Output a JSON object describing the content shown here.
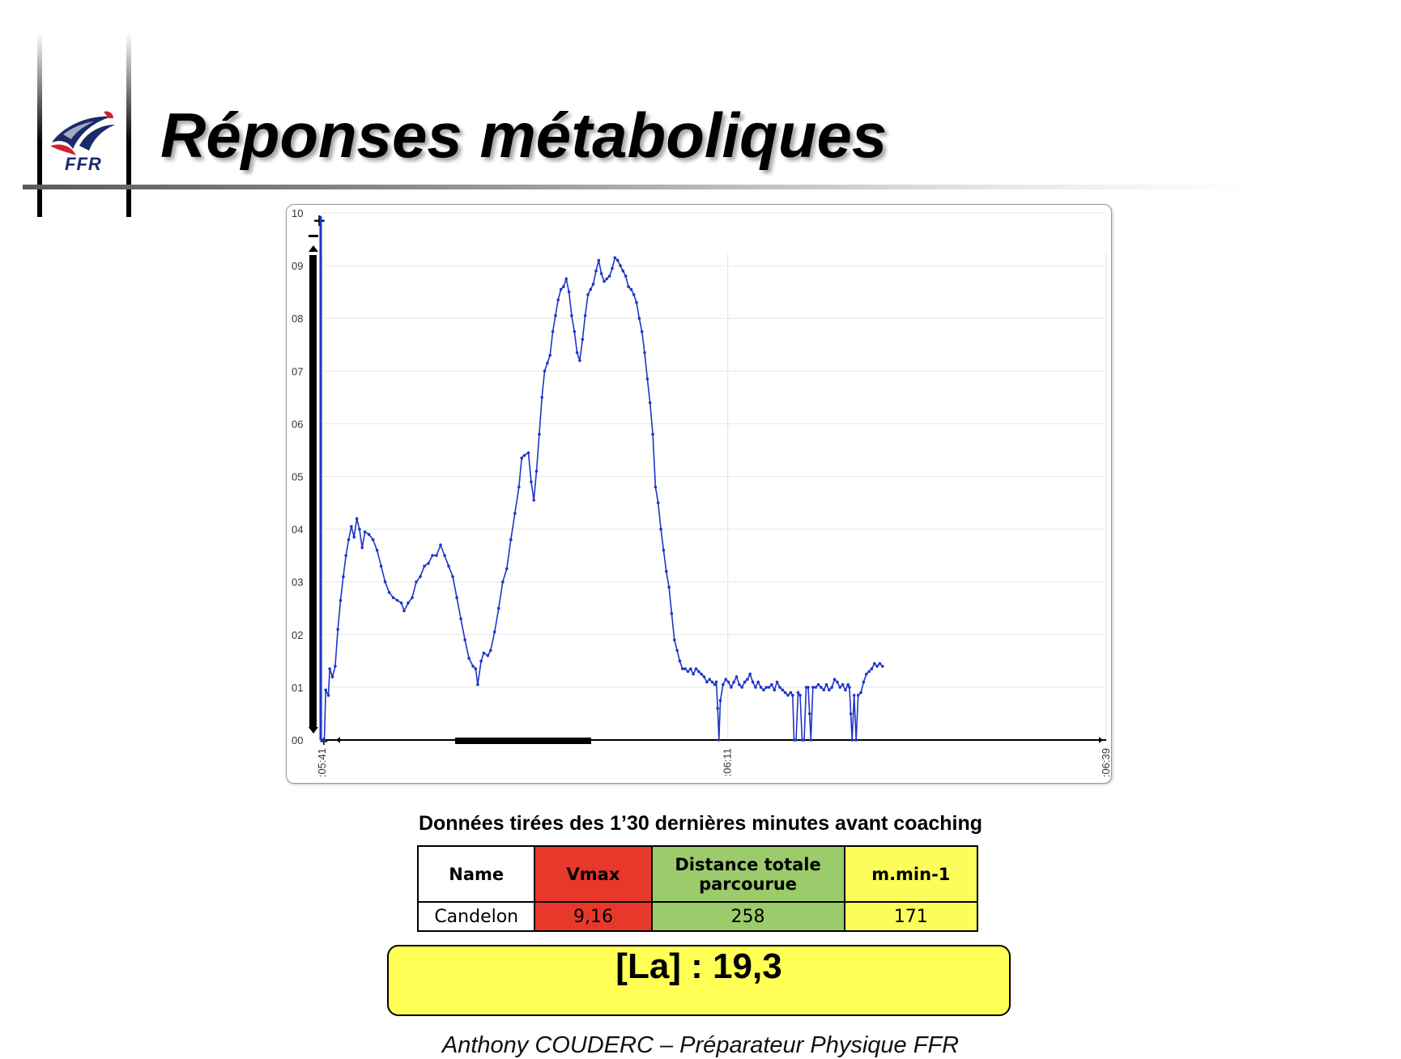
{
  "slide": {
    "title": "Réponses métaboliques",
    "logo_text": "FFR",
    "caption": "Données tirées des 1’30 dernières minutes avant coaching",
    "footer": "Anthony COUDERC – Préparateur Physique FFR",
    "la_result": "[La] : 19,3"
  },
  "logo": {
    "icon": "rooster-icon",
    "colors": {
      "blue": "#1b2a6b",
      "red": "#d1202f"
    }
  },
  "table": {
    "headers": [
      "Name",
      "Vmax",
      "Distance totale parcourue",
      "m.min-1"
    ],
    "rows": [
      [
        "Candelon",
        "9,16",
        "258",
        "171"
      ]
    ],
    "colors": {
      "name": "#ffffff",
      "vmax": "#e8382b",
      "distance": "#9bcb6a",
      "mmin": "#fcfc5a",
      "la_box": "#ffff55"
    }
  },
  "chart_data": {
    "type": "line",
    "title": "",
    "xlabel": "",
    "ylabel": "",
    "color": "#1f35c8",
    "grid": "horizontal",
    "ylim": [
      0,
      10
    ],
    "y_ticks": [
      "00",
      "01",
      "02",
      "03",
      "04",
      "05",
      "06",
      "07",
      "08",
      "09",
      "10"
    ],
    "x_ticks": [
      {
        "label": ":05:41",
        "t": 0
      },
      {
        "label": ":06:11",
        "t": 30
      },
      {
        "label": ":06:39",
        "t": 58
      }
    ],
    "series": [
      {
        "points": [
          [
            0.0,
            0
          ],
          [
            0.15,
            0
          ],
          [
            0.25,
            0.95
          ],
          [
            0.45,
            0.85
          ],
          [
            0.55,
            1.35
          ],
          [
            0.75,
            1.2
          ],
          [
            0.95,
            1.4
          ],
          [
            1.15,
            2.1
          ],
          [
            1.35,
            2.65
          ],
          [
            1.55,
            3.1
          ],
          [
            1.75,
            3.5
          ],
          [
            1.95,
            3.8
          ],
          [
            2.15,
            4.05
          ],
          [
            2.35,
            3.85
          ],
          [
            2.55,
            4.2
          ],
          [
            2.75,
            4.0
          ],
          [
            2.95,
            3.65
          ],
          [
            3.15,
            3.95
          ],
          [
            3.45,
            3.9
          ],
          [
            3.75,
            3.8
          ],
          [
            4.05,
            3.6
          ],
          [
            4.35,
            3.3
          ],
          [
            4.65,
            3.0
          ],
          [
            4.95,
            2.8
          ],
          [
            5.25,
            2.7
          ],
          [
            5.55,
            2.65
          ],
          [
            5.85,
            2.6
          ],
          [
            6.05,
            2.45
          ],
          [
            6.35,
            2.6
          ],
          [
            6.65,
            2.7
          ],
          [
            6.95,
            3.0
          ],
          [
            7.25,
            3.1
          ],
          [
            7.55,
            3.3
          ],
          [
            7.85,
            3.35
          ],
          [
            8.15,
            3.5
          ],
          [
            8.45,
            3.5
          ],
          [
            8.75,
            3.7
          ],
          [
            9.05,
            3.5
          ],
          [
            9.35,
            3.3
          ],
          [
            9.65,
            3.1
          ],
          [
            9.95,
            2.7
          ],
          [
            10.25,
            2.3
          ],
          [
            10.55,
            1.9
          ],
          [
            10.85,
            1.55
          ],
          [
            11.15,
            1.4
          ],
          [
            11.35,
            1.35
          ],
          [
            11.5,
            1.05
          ],
          [
            11.75,
            1.5
          ],
          [
            11.95,
            1.65
          ],
          [
            12.25,
            1.6
          ],
          [
            12.45,
            1.7
          ],
          [
            12.75,
            2.05
          ],
          [
            13.05,
            2.5
          ],
          [
            13.35,
            3.0
          ],
          [
            13.65,
            3.25
          ],
          [
            13.95,
            3.8
          ],
          [
            14.25,
            4.3
          ],
          [
            14.55,
            4.8
          ],
          [
            14.75,
            5.35
          ],
          [
            14.95,
            5.4
          ],
          [
            15.25,
            5.45
          ],
          [
            15.45,
            4.9
          ],
          [
            15.65,
            4.55
          ],
          [
            15.85,
            5.1
          ],
          [
            16.05,
            5.8
          ],
          [
            16.25,
            6.5
          ],
          [
            16.45,
            7.0
          ],
          [
            16.65,
            7.15
          ],
          [
            16.85,
            7.3
          ],
          [
            17.05,
            7.75
          ],
          [
            17.25,
            8.05
          ],
          [
            17.45,
            8.35
          ],
          [
            17.65,
            8.55
          ],
          [
            17.85,
            8.6
          ],
          [
            18.05,
            8.75
          ],
          [
            18.25,
            8.5
          ],
          [
            18.45,
            8.05
          ],
          [
            18.65,
            7.75
          ],
          [
            18.85,
            7.35
          ],
          [
            19.05,
            7.2
          ],
          [
            19.25,
            7.6
          ],
          [
            19.45,
            8.05
          ],
          [
            19.65,
            8.45
          ],
          [
            19.85,
            8.55
          ],
          [
            20.05,
            8.65
          ],
          [
            20.25,
            8.9
          ],
          [
            20.45,
            9.1
          ],
          [
            20.65,
            8.85
          ],
          [
            20.85,
            8.7
          ],
          [
            21.05,
            8.75
          ],
          [
            21.25,
            8.8
          ],
          [
            21.45,
            8.95
          ],
          [
            21.65,
            9.15
          ],
          [
            21.85,
            9.1
          ],
          [
            22.05,
            9.0
          ],
          [
            22.25,
            8.9
          ],
          [
            22.45,
            8.8
          ],
          [
            22.65,
            8.6
          ],
          [
            22.85,
            8.55
          ],
          [
            23.05,
            8.45
          ],
          [
            23.25,
            8.3
          ],
          [
            23.45,
            8.0
          ],
          [
            23.65,
            7.75
          ],
          [
            23.85,
            7.35
          ],
          [
            24.05,
            6.85
          ],
          [
            24.25,
            6.4
          ],
          [
            24.45,
            5.8
          ],
          [
            24.65,
            4.8
          ],
          [
            24.85,
            4.5
          ],
          [
            25.05,
            4.0
          ],
          [
            25.25,
            3.6
          ],
          [
            25.45,
            3.2
          ],
          [
            25.65,
            2.9
          ],
          [
            25.85,
            2.4
          ],
          [
            26.05,
            1.9
          ],
          [
            26.25,
            1.7
          ],
          [
            26.45,
            1.5
          ],
          [
            26.65,
            1.35
          ],
          [
            26.85,
            1.35
          ],
          [
            27.05,
            1.3
          ],
          [
            27.25,
            1.35
          ],
          [
            27.45,
            1.25
          ],
          [
            27.65,
            1.35
          ],
          [
            27.85,
            1.3
          ],
          [
            28.05,
            1.25
          ],
          [
            28.25,
            1.2
          ],
          [
            28.45,
            1.1
          ],
          [
            28.65,
            1.15
          ],
          [
            28.85,
            1.1
          ],
          [
            29.05,
            1.05
          ],
          [
            29.15,
            1.1
          ],
          [
            29.25,
            0.6
          ],
          [
            29.35,
            0.0
          ],
          [
            29.45,
            0.75
          ],
          [
            29.65,
            1.05
          ],
          [
            29.85,
            1.15
          ],
          [
            30.05,
            1.1
          ],
          [
            30.25,
            1.0
          ],
          [
            30.45,
            1.1
          ],
          [
            30.65,
            1.2
          ],
          [
            30.85,
            1.05
          ],
          [
            31.05,
            1.0
          ],
          [
            31.25,
            1.1
          ],
          [
            31.45,
            1.15
          ],
          [
            31.65,
            1.25
          ],
          [
            31.85,
            1.1
          ],
          [
            32.05,
            1.0
          ],
          [
            32.25,
            1.1
          ],
          [
            32.45,
            1.0
          ],
          [
            32.65,
            0.95
          ],
          [
            32.85,
            1.0
          ],
          [
            33.05,
            1.0
          ],
          [
            33.25,
            1.05
          ],
          [
            33.45,
            0.95
          ],
          [
            33.65,
            1.1
          ],
          [
            33.85,
            1.0
          ],
          [
            34.05,
            0.95
          ],
          [
            34.25,
            0.9
          ],
          [
            34.45,
            0.85
          ],
          [
            34.65,
            0.9
          ],
          [
            34.8,
            0.85
          ],
          [
            34.9,
            0.0
          ],
          [
            35.05,
            0.0
          ],
          [
            35.2,
            0.9
          ],
          [
            35.35,
            0.85
          ],
          [
            35.5,
            0.0
          ],
          [
            35.65,
            0.0
          ],
          [
            35.8,
            1.0
          ],
          [
            35.95,
            1.0
          ],
          [
            36.05,
            0.5
          ],
          [
            36.15,
            0.0
          ],
          [
            36.3,
            1.0
          ],
          [
            36.5,
            1.0
          ],
          [
            36.7,
            1.05
          ],
          [
            36.9,
            1.0
          ],
          [
            37.1,
            0.95
          ],
          [
            37.3,
            1.05
          ],
          [
            37.5,
            0.95
          ],
          [
            37.7,
            1.0
          ],
          [
            37.9,
            1.15
          ],
          [
            38.1,
            1.1
          ],
          [
            38.3,
            1.0
          ],
          [
            38.5,
            1.05
          ],
          [
            38.7,
            0.95
          ],
          [
            38.9,
            1.05
          ],
          [
            39.0,
            1.0
          ],
          [
            39.1,
            0.5
          ],
          [
            39.2,
            0.0
          ],
          [
            39.35,
            0.85
          ],
          [
            39.5,
            0.0
          ],
          [
            39.65,
            0.85
          ],
          [
            39.85,
            0.9
          ],
          [
            40.05,
            1.1
          ],
          [
            40.25,
            1.25
          ],
          [
            40.45,
            1.3
          ],
          [
            40.65,
            1.35
          ],
          [
            40.85,
            1.45
          ],
          [
            41.05,
            1.4
          ],
          [
            41.25,
            1.45
          ],
          [
            41.45,
            1.4
          ]
        ]
      }
    ]
  }
}
